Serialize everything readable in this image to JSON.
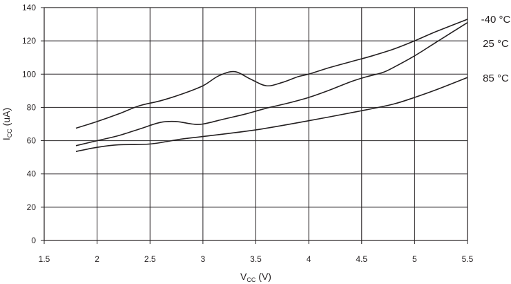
{
  "chart_data": {
    "type": "line",
    "title": "",
    "xlabel": {
      "main": "V",
      "sub": "CC",
      "unit": " (V)"
    },
    "ylabel": {
      "main": "I",
      "sub": "CC",
      "unit": " (uA)"
    },
    "xlim": [
      1.5,
      5.5
    ],
    "ylim": [
      0,
      140
    ],
    "xticks": [
      "1.5",
      "2",
      "2.5",
      "3",
      "3.5",
      "4",
      "4.5",
      "5",
      "5.5"
    ],
    "yticks": [
      "0",
      "20",
      "40",
      "60",
      "80",
      "100",
      "120",
      "140"
    ],
    "grid": true,
    "legend_placement": "right, at line ends",
    "line_color": "#231f20",
    "series": [
      {
        "name": "-40 °C",
        "x": [
          1.8,
          2.0,
          2.2,
          2.4,
          2.6,
          2.8,
          3.0,
          3.15,
          3.3,
          3.45,
          3.6,
          3.75,
          3.9,
          4.0,
          4.2,
          4.4,
          4.6,
          4.8,
          5.0,
          5.2,
          5.5
        ],
        "y": [
          67.5,
          71.5,
          76,
          81,
          84,
          88,
          93,
          99,
          101.5,
          97,
          93,
          95,
          98.5,
          100,
          104,
          107.5,
          111,
          115,
          120,
          125.5,
          133
        ]
      },
      {
        "name": "25 °C",
        "x": [
          1.8,
          2.0,
          2.2,
          2.4,
          2.6,
          2.75,
          2.9,
          3.0,
          3.2,
          3.4,
          3.6,
          3.8,
          4.0,
          4.2,
          4.4,
          4.55,
          4.7,
          4.8,
          5.0,
          5.2,
          5.5
        ],
        "y": [
          57,
          60,
          63,
          67,
          71,
          71.5,
          70,
          70,
          73,
          76,
          79.5,
          82.5,
          86,
          90.5,
          95.5,
          98.5,
          101,
          104,
          111,
          119,
          131
        ]
      },
      {
        "name": "85 °C",
        "x": [
          1.8,
          2.0,
          2.2,
          2.5,
          2.8,
          3.0,
          3.5,
          4.0,
          4.5,
          4.8,
          5.0,
          5.2,
          5.5
        ],
        "y": [
          53.5,
          56,
          57.5,
          58,
          61,
          62.5,
          66.5,
          72,
          78,
          82,
          86,
          90.5,
          98
        ]
      }
    ]
  }
}
